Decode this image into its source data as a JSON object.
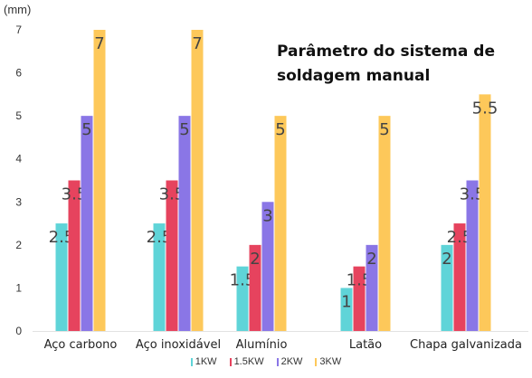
{
  "chart_data": {
    "type": "bar",
    "title_lines": [
      "Parâmetro do sistema de",
      "soldagem manual"
    ],
    "y_unit": "(mm)",
    "ylim": [
      0,
      7
    ],
    "yticks": [
      "0",
      "1",
      "2",
      "3",
      "4",
      "5",
      "6",
      "7"
    ],
    "grid": false,
    "legend_position": "bottom-center",
    "categories": [
      "Aço carbono",
      "Aço inoxidável",
      "Alumínio",
      "Latão",
      "Chapa galvanizada"
    ],
    "series": [
      {
        "name": "1KW",
        "color": "#5fd4d8",
        "values": [
          2.5,
          2.5,
          1.5,
          1,
          2
        ],
        "labels": [
          "2.5",
          "2.5",
          "1.5",
          "1",
          "2"
        ]
      },
      {
        "name": "1.5KW",
        "color": "#e6435e",
        "values": [
          3.5,
          3.5,
          2,
          1.5,
          2.5
        ],
        "labels": [
          "3.5",
          "3.5",
          "2",
          "1.5",
          "2.5"
        ]
      },
      {
        "name": "2KW",
        "color": "#8a76e6",
        "values": [
          5,
          5,
          3,
          2,
          3.5
        ],
        "labels": [
          "5",
          "5",
          "3",
          "2",
          "3.5"
        ]
      },
      {
        "name": "3KW",
        "color": "#fdc85a",
        "values": [
          7,
          7,
          5,
          5,
          5.5
        ],
        "labels": [
          "7",
          "7",
          "5",
          "5",
          "5.5"
        ]
      }
    ]
  }
}
